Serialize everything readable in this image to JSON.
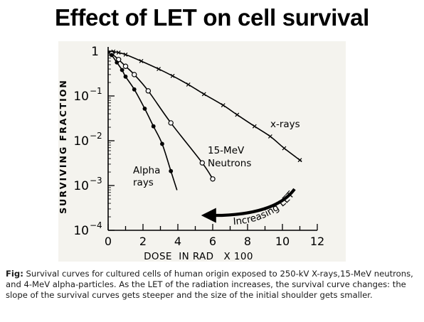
{
  "title": "Effect of LET on cell survival",
  "caption": {
    "label": "Fig:",
    "text": " Survival curves for cultured cells of human origin exposed to 250-kV X-rays,15-MeV neutrons, and 4-MeV alpha-particles. As the LET of the radiation increases, the survival curve changes: the slope of the survival curves gets steeper and the size of the initial shoulder gets smaller."
  },
  "chart_data": {
    "type": "scatter",
    "xlabel": "DOSE  IN RAD   X 100",
    "ylabel": "SURVIVING FRACTION",
    "xlim": [
      0,
      12
    ],
    "ylim": [
      0.0001,
      1
    ],
    "y_scale": "log",
    "grid": false,
    "x_ticks": [
      0,
      2,
      4,
      6,
      8,
      10,
      12
    ],
    "x_tick_labels": [
      "0",
      "2",
      "4",
      "6",
      "8",
      "10",
      "12"
    ],
    "y_ticks": [
      {
        "value": 1,
        "base": "1",
        "exp": ""
      },
      {
        "value": 0.1,
        "base": "10",
        "exp": "−1"
      },
      {
        "value": 0.01,
        "base": "10",
        "exp": "−2"
      },
      {
        "value": 0.001,
        "base": "10",
        "exp": "−3"
      },
      {
        "value": 0.0001,
        "base": "10",
        "exp": "−4"
      }
    ],
    "series": [
      {
        "name": "x-rays",
        "marker": "x",
        "curve_end_x": 11.05,
        "points": [
          {
            "x": 0.3,
            "y": 0.98
          },
          {
            "x": 0.6,
            "y": 0.93
          },
          {
            "x": 1.0,
            "y": 0.84
          },
          {
            "x": 1.9,
            "y": 0.6
          },
          {
            "x": 2.9,
            "y": 0.4
          },
          {
            "x": 3.7,
            "y": 0.28
          },
          {
            "x": 4.6,
            "y": 0.18
          },
          {
            "x": 5.5,
            "y": 0.11
          },
          {
            "x": 6.6,
            "y": 0.062
          },
          {
            "x": 7.4,
            "y": 0.038
          },
          {
            "x": 8.4,
            "y": 0.021
          },
          {
            "x": 9.3,
            "y": 0.0125
          },
          {
            "x": 10.1,
            "y": 0.0068
          },
          {
            "x": 11.0,
            "y": 0.0037
          }
        ]
      },
      {
        "name": "15-MeV Neutrons",
        "marker": "open-circle",
        "curve_end_x": 6.05,
        "points": [
          {
            "x": 0.2,
            "y": 0.88
          },
          {
            "x": 0.6,
            "y": 0.65
          },
          {
            "x": 1.0,
            "y": 0.46
          },
          {
            "x": 1.5,
            "y": 0.3
          },
          {
            "x": 2.3,
            "y": 0.13
          },
          {
            "x": 3.6,
            "y": 0.025
          },
          {
            "x": 5.4,
            "y": 0.0032
          },
          {
            "x": 6.0,
            "y": 0.0014
          }
        ]
      },
      {
        "name": "Alpha rays",
        "marker": "filled-circle",
        "curve_end_x": 3.95,
        "points": [
          {
            "x": 0.2,
            "y": 0.82
          },
          {
            "x": 0.5,
            "y": 0.56
          },
          {
            "x": 0.8,
            "y": 0.38
          },
          {
            "x": 1.0,
            "y": 0.27
          },
          {
            "x": 1.5,
            "y": 0.14
          },
          {
            "x": 2.1,
            "y": 0.052
          },
          {
            "x": 2.6,
            "y": 0.021
          },
          {
            "x": 3.1,
            "y": 0.0085
          },
          {
            "x": 3.6,
            "y": 0.0021
          }
        ]
      }
    ],
    "series_labels": [
      {
        "series": "x-rays",
        "lines": [
          "x-rays"
        ]
      },
      {
        "series": "15-MeV Neutrons",
        "lines": [
          "15-MeV",
          "Neutrons"
        ]
      },
      {
        "series": "Alpha rays",
        "lines": [
          "Alpha",
          "rays"
        ]
      }
    ],
    "annotation": {
      "text": "Increasing LET"
    }
  }
}
